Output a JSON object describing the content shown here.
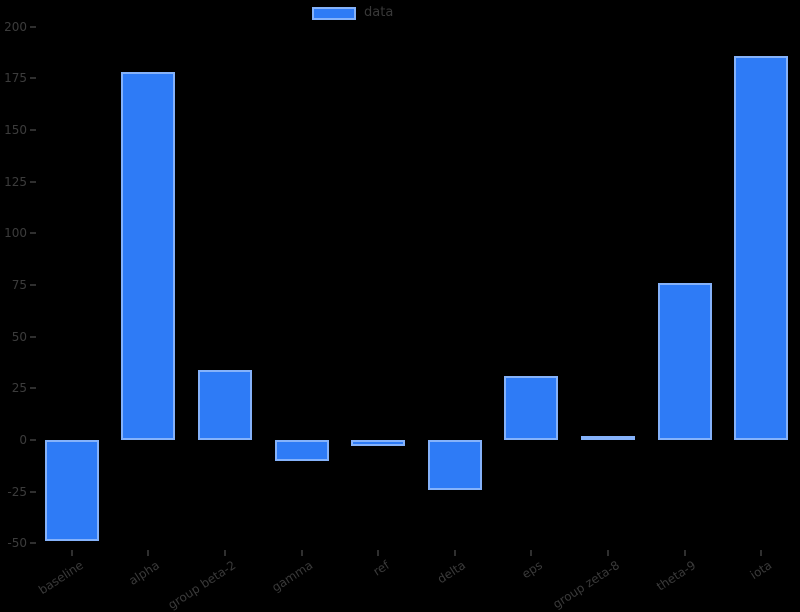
{
  "chart_data": {
    "type": "bar",
    "title": "",
    "xlabel": "",
    "ylabel": "",
    "categories": [
      "baseline",
      "alpha",
      "group beta-2",
      "gamma",
      "ref",
      "delta",
      "eps",
      "group zeta-8",
      "theta-9",
      "iota"
    ],
    "values": [
      -49,
      178,
      34,
      -10,
      -3,
      -24,
      31,
      2,
      76,
      186
    ],
    "yticks": [
      200,
      175,
      150,
      125,
      100,
      75,
      50,
      25,
      0,
      -25,
      -50
    ],
    "ylim": [
      -62,
      213
    ],
    "grid": false,
    "legend": {
      "label": "data",
      "position": "top-center",
      "swatch_color": "#2e7bf6"
    },
    "bar_color": "#2e7bf6",
    "bar_edge_color": "#8a8a8a",
    "background_color": "#000000",
    "tick_text_color": "#3a3a3a"
  }
}
